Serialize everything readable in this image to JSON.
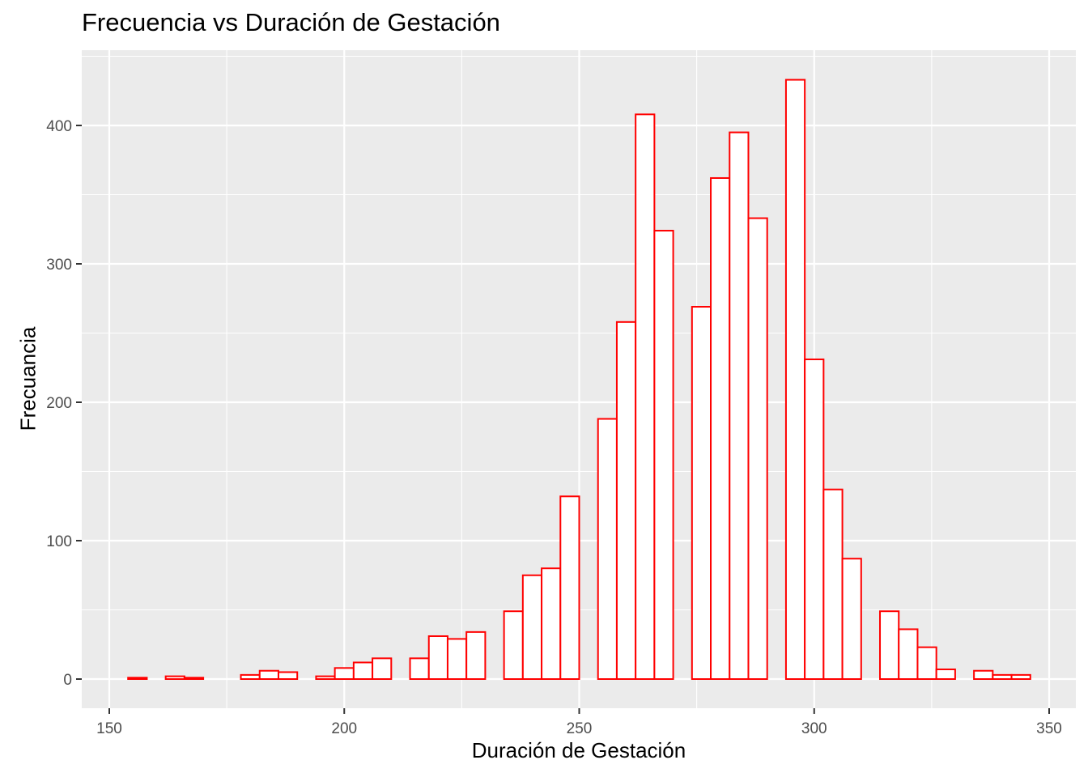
{
  "chart_data": {
    "type": "bar",
    "subtype": "histogram",
    "title": "Frecuencia vs Duración de Gestación",
    "xlabel": "Duración de Gestación",
    "ylabel": "Frecuancia",
    "xlim": [
      144,
      356
    ],
    "ylim": [
      -22,
      455
    ],
    "x_ticks": [
      150,
      200,
      250,
      300,
      350
    ],
    "y_ticks": [
      0,
      100,
      200,
      300,
      400
    ],
    "grid": true,
    "legend": null,
    "bin_width": 4,
    "bin_start": 154,
    "bar_fill": "#ffffff",
    "bar_outline": "#ff0000",
    "panel_background": "#ebebeb",
    "bins": [
      {
        "x0": 154,
        "x1": 158,
        "count": 1
      },
      {
        "x0": 158,
        "x1": 162,
        "count": 0
      },
      {
        "x0": 162,
        "x1": 166,
        "count": 2
      },
      {
        "x0": 166,
        "x1": 170,
        "count": 1
      },
      {
        "x0": 170,
        "x1": 174,
        "count": 0
      },
      {
        "x0": 174,
        "x1": 178,
        "count": 0
      },
      {
        "x0": 178,
        "x1": 182,
        "count": 3
      },
      {
        "x0": 182,
        "x1": 186,
        "count": 6
      },
      {
        "x0": 186,
        "x1": 190,
        "count": 5
      },
      {
        "x0": 190,
        "x1": 194,
        "count": 0
      },
      {
        "x0": 194,
        "x1": 198,
        "count": 2
      },
      {
        "x0": 198,
        "x1": 202,
        "count": 8
      },
      {
        "x0": 202,
        "x1": 206,
        "count": 12
      },
      {
        "x0": 206,
        "x1": 210,
        "count": 15
      },
      {
        "x0": 210,
        "x1": 214,
        "count": 0
      },
      {
        "x0": 214,
        "x1": 218,
        "count": 15
      },
      {
        "x0": 218,
        "x1": 222,
        "count": 31
      },
      {
        "x0": 222,
        "x1": 226,
        "count": 29
      },
      {
        "x0": 226,
        "x1": 230,
        "count": 34
      },
      {
        "x0": 230,
        "x1": 234,
        "count": 0
      },
      {
        "x0": 234,
        "x1": 238,
        "count": 49
      },
      {
        "x0": 238,
        "x1": 242,
        "count": 75
      },
      {
        "x0": 242,
        "x1": 246,
        "count": 80
      },
      {
        "x0": 246,
        "x1": 250,
        "count": 132
      },
      {
        "x0": 250,
        "x1": 254,
        "count": 0
      },
      {
        "x0": 254,
        "x1": 258,
        "count": 188
      },
      {
        "x0": 258,
        "x1": 262,
        "count": 258
      },
      {
        "x0": 262,
        "x1": 266,
        "count": 408
      },
      {
        "x0": 266,
        "x1": 270,
        "count": 324
      },
      {
        "x0": 270,
        "x1": 274,
        "count": 0
      },
      {
        "x0": 274,
        "x1": 278,
        "count": 269
      },
      {
        "x0": 278,
        "x1": 282,
        "count": 362
      },
      {
        "x0": 282,
        "x1": 286,
        "count": 395
      },
      {
        "x0": 286,
        "x1": 290,
        "count": 333
      },
      {
        "x0": 290,
        "x1": 294,
        "count": 0
      },
      {
        "x0": 294,
        "x1": 298,
        "count": 433
      },
      {
        "x0": 298,
        "x1": 302,
        "count": 231
      },
      {
        "x0": 302,
        "x1": 306,
        "count": 137
      },
      {
        "x0": 306,
        "x1": 310,
        "count": 87
      },
      {
        "x0": 310,
        "x1": 314,
        "count": 0
      },
      {
        "x0": 314,
        "x1": 318,
        "count": 49
      },
      {
        "x0": 318,
        "x1": 322,
        "count": 36
      },
      {
        "x0": 322,
        "x1": 326,
        "count": 23
      },
      {
        "x0": 326,
        "x1": 330,
        "count": 7
      },
      {
        "x0": 330,
        "x1": 334,
        "count": 0
      },
      {
        "x0": 334,
        "x1": 338,
        "count": 6
      },
      {
        "x0": 338,
        "x1": 342,
        "count": 3
      },
      {
        "x0": 342,
        "x1": 346,
        "count": 3
      }
    ]
  }
}
